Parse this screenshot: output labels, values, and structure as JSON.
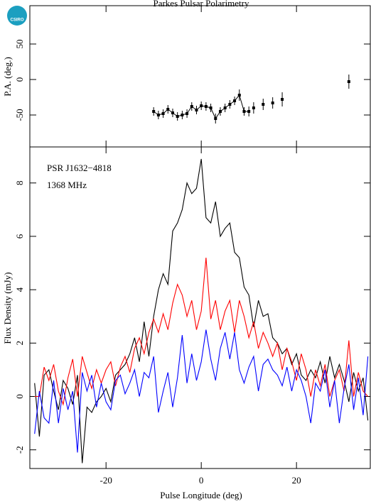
{
  "logo": "CSIRO",
  "chart_data": [
    {
      "type": "errorbar",
      "title": "Parkes Pulsar Polarimetry",
      "ylabel": "P.A. (deg.)",
      "color": "#000000",
      "x": [
        -10,
        -9,
        -8,
        -7,
        -6,
        -5,
        -4,
        -3,
        -2,
        -1,
        0,
        1,
        2,
        3,
        4,
        5,
        6,
        7,
        8,
        9,
        10,
        11,
        13,
        15,
        17,
        31
      ],
      "values": [
        -45,
        -50,
        -48,
        -42,
        -47,
        -52,
        -50,
        -48,
        -38,
        -43,
        -37,
        -38,
        -40,
        -55,
        -45,
        -40,
        -35,
        -30,
        -22,
        -45,
        -45,
        -40,
        -35,
        -33,
        -28,
        -3
      ],
      "errors": [
        6,
        6,
        6,
        6,
        6,
        6,
        6,
        6,
        6,
        6,
        6,
        6,
        6,
        7,
        6,
        6,
        6,
        6,
        8,
        6,
        7,
        8,
        8,
        8,
        10,
        10
      ],
      "xlim": [
        -36,
        35.5
      ],
      "ylim": [
        -95,
        104
      ],
      "yticks": [
        -50,
        0,
        50
      ]
    },
    {
      "type": "line",
      "xlabel": "Pulse Longitude (deg)",
      "ylabel": "Flux Density (mJy)",
      "annotations": [
        "PSR J1632−4818",
        "1368 MHz"
      ],
      "x": [
        -35,
        -34,
        -33,
        -32,
        -31,
        -30,
        -29,
        -28,
        -27,
        -26,
        -25,
        -24,
        -23,
        -22,
        -21,
        -20,
        -19,
        -18,
        -17,
        -16,
        -15,
        -14,
        -13,
        -12,
        -11,
        -10,
        -9,
        -8,
        -7,
        -6,
        -5,
        -4,
        -3,
        -2,
        -1,
        0,
        1,
        2,
        3,
        4,
        5,
        6,
        7,
        8,
        9,
        10,
        11,
        12,
        13,
        14,
        15,
        16,
        17,
        18,
        19,
        20,
        21,
        22,
        23,
        24,
        25,
        26,
        27,
        28,
        29,
        30,
        31,
        32,
        33,
        34,
        35
      ],
      "series": [
        {
          "color": "#000000",
          "values": [
            0.5,
            -1.5,
            0.8,
            1.0,
            0.2,
            -0.5,
            0.6,
            0.3,
            -0.3,
            0.8,
            -2.5,
            -0.4,
            -0.6,
            -0.2,
            0.0,
            0.3,
            -0.2,
            0.8,
            1.0,
            1.2,
            1.6,
            2.2,
            1.3,
            2.8,
            1.5,
            3.0,
            4.0,
            4.6,
            4.2,
            6.2,
            6.5,
            7.0,
            8.0,
            7.6,
            7.8,
            8.9,
            6.7,
            6.5,
            7.3,
            6.0,
            6.3,
            6.5,
            5.4,
            5.2,
            4.1,
            3.8,
            2.6,
            3.6,
            3.0,
            3.1,
            2.2,
            2.0,
            1.6,
            1.8,
            1.2,
            1.6,
            0.8,
            0.6,
            1.0,
            0.7,
            1.3,
            0.5,
            1.5,
            0.7,
            1.2,
            0.6,
            -0.2,
            0.9,
            0.2,
            0.7,
            -0.9
          ]
        },
        {
          "color": "#ff0000",
          "values": [
            0.0,
            0.0,
            1.1,
            0.6,
            1.2,
            0.2,
            -0.3,
            0.7,
            1.4,
            0.0,
            1.5,
            0.9,
            0.3,
            1.0,
            0.5,
            1.0,
            1.3,
            0.4,
            1.1,
            1.5,
            0.9,
            1.8,
            2.2,
            1.6,
            2.4,
            2.9,
            2.4,
            3.1,
            2.5,
            3.5,
            4.2,
            3.8,
            3.0,
            3.6,
            2.5,
            3.2,
            5.2,
            2.9,
            3.6,
            2.5,
            3.2,
            3.6,
            2.4,
            3.6,
            3.0,
            2.2,
            2.8,
            1.8,
            2.4,
            2.0,
            1.5,
            2.0,
            1.0,
            1.8,
            1.3,
            0.6,
            1.6,
            1.0,
            0.0,
            1.0,
            0.4,
            1.2,
            0.0,
            0.6,
            1.0,
            0.2,
            2.1,
            0.0,
            0.9,
            0.2,
            0.0
          ]
        },
        {
          "color": "#0000ff",
          "values": [
            -1.4,
            0.2,
            -0.8,
            -1.0,
            0.6,
            -1.0,
            0.3,
            -0.5,
            0.2,
            -2.1,
            0.9,
            0.2,
            0.8,
            -0.4,
            0.5,
            -0.2,
            -0.5,
            0.6,
            0.8,
            0.1,
            0.5,
            1.0,
            0.0,
            0.9,
            0.7,
            1.5,
            -0.6,
            0.2,
            0.9,
            -0.4,
            0.7,
            2.3,
            0.5,
            1.6,
            0.6,
            1.3,
            2.5,
            1.4,
            0.6,
            1.8,
            2.4,
            1.4,
            2.4,
            1.0,
            0.5,
            1.1,
            1.5,
            0.2,
            1.2,
            1.4,
            1.0,
            0.8,
            0.4,
            1.1,
            0.2,
            1.0,
            0.6,
            0.0,
            -1.0,
            0.5,
            0.2,
            1.0,
            -0.4,
            0.6,
            -1.0,
            0.3,
            1.2,
            -0.5,
            0.7,
            -0.7,
            1.5
          ]
        }
      ],
      "xlim": [
        -36,
        35.5
      ],
      "xticks": [
        -20,
        0,
        20
      ],
      "ylim": [
        -2.7,
        9.35
      ],
      "yticks": [
        -2,
        0,
        2,
        4,
        6,
        8
      ]
    }
  ]
}
